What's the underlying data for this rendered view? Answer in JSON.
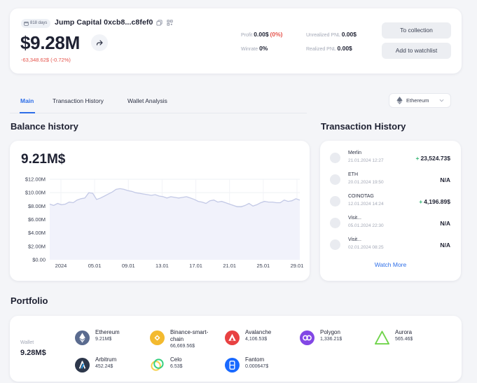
{
  "header": {
    "badge": "818 days",
    "wallet_name": "Jump Capital 0xcb8...c8fef0",
    "total_value": "$9.28M",
    "change": "-63,348.62$ (-0.72%)",
    "profit_label": "Profit",
    "profit_value": "0.00$",
    "profit_pct": "(0%)",
    "winrate_label": "Winrate",
    "winrate_value": "0%",
    "unrealized_label": "Unrealized PNL",
    "unrealized_value": "0.00$",
    "realized_label": "Realized PNL",
    "realized_value": "0.00$",
    "to_collection": "To collection",
    "add_watchlist": "Add to watchlist"
  },
  "tabs": [
    {
      "label": "Main",
      "active": true
    },
    {
      "label": "Transaction History",
      "active": false
    },
    {
      "label": "Wallet Analysis",
      "active": false
    }
  ],
  "network": {
    "selected": "Ethereum"
  },
  "balance": {
    "title": "Balance history",
    "current": "9.21M$"
  },
  "chart_data": {
    "type": "area",
    "title": "",
    "xlabel": "",
    "ylabel": "",
    "ylim": [
      0,
      12
    ],
    "y_unit": "M$",
    "y_ticks": [
      "$12.00M",
      "$10.00M",
      "$8.00M",
      "$6.00M",
      "$4.00M",
      "$2.00M",
      "$0.00"
    ],
    "x_ticks": [
      "2024",
      "05.01",
      "09.01",
      "13.01",
      "17.01",
      "21.01",
      "25.01",
      "29.01"
    ],
    "x": [
      0,
      1,
      2,
      3,
      4,
      5,
      6,
      7,
      8,
      9,
      10,
      11,
      12,
      13,
      14,
      15,
      16,
      17,
      18,
      19,
      20,
      21,
      22,
      23,
      24,
      25,
      26,
      27,
      28,
      29,
      30,
      31,
      32,
      33,
      34,
      35,
      36,
      37,
      38,
      39,
      40,
      41,
      42,
      43,
      44,
      45,
      46,
      47,
      48,
      49,
      50,
      51,
      52,
      53,
      54,
      55,
      56,
      57,
      58,
      59,
      60,
      61,
      62,
      63,
      64
    ],
    "values": [
      8.3,
      8.1,
      8.4,
      8.2,
      8.3,
      8.6,
      8.5,
      8.9,
      9.1,
      9.2,
      10.0,
      9.9,
      9.0,
      9.2,
      9.5,
      9.8,
      10.1,
      10.5,
      10.6,
      10.5,
      10.3,
      10.2,
      10.0,
      9.9,
      9.8,
      9.7,
      9.6,
      9.7,
      9.5,
      9.4,
      9.2,
      9.4,
      9.3,
      9.2,
      9.3,
      9.4,
      9.2,
      9.0,
      8.7,
      8.6,
      8.4,
      8.8,
      8.9,
      8.6,
      8.7,
      8.5,
      8.3,
      8.1,
      7.9,
      7.9,
      8.1,
      8.4,
      8.0,
      8.2,
      8.5,
      8.7,
      8.6,
      8.6,
      8.5,
      8.5,
      8.9,
      8.7,
      8.8,
      9.1,
      8.9
    ],
    "grid": true,
    "line_color": "#c3c9e6",
    "fill_color": "#f1f2fb"
  },
  "transactions": {
    "title": "Transaction History",
    "items": [
      {
        "name": "Merlin",
        "date": "21.01.2024 12:27",
        "value": "23,524.73$",
        "plus": "+"
      },
      {
        "name": "ETH",
        "date": "20.01.2024 19:50",
        "value": "N/A",
        "plus": ""
      },
      {
        "name": "COINOTAG",
        "date": "12.01.2024 14:24",
        "value": "4,196.89$",
        "plus": "+"
      },
      {
        "name": "Visit...",
        "date": "05.01.2024 22:30",
        "value": "N/A",
        "plus": ""
      },
      {
        "name": "Visit...",
        "date": "02.01.2024 08:25",
        "value": "N/A",
        "plus": ""
      }
    ],
    "watch_more": "Watch More"
  },
  "portfolio": {
    "title": "Portfolio",
    "wallet_label": "Wallet",
    "wallet_total": "9.28M$",
    "assets": [
      {
        "name": "Ethereum",
        "value": "9.21M$",
        "icon": "ethereum-icon",
        "color": "#5a6b8f"
      },
      {
        "name": "Binance-smart-chain",
        "value": "66,669.56$",
        "icon": "binance-icon",
        "color": "#f3ba2f"
      },
      {
        "name": "Avalanche",
        "value": "4,106.53$",
        "icon": "avalanche-icon",
        "color": "#e84142"
      },
      {
        "name": "Polygon",
        "value": "1,336.21$",
        "icon": "polygon-icon",
        "color": "#8247e5"
      },
      {
        "name": "Aurora",
        "value": "565.46$",
        "icon": "aurora-icon",
        "color": "#70d44b"
      },
      {
        "name": "Arbitrum",
        "value": "452.24$",
        "icon": "arbitrum-icon",
        "color": "#2d374b"
      },
      {
        "name": "Celo",
        "value": "6.53$",
        "icon": "celo-icon",
        "color": "#35d07f"
      },
      {
        "name": "Fantom",
        "value": "0.000647$",
        "icon": "fantom-icon",
        "color": "#1969ff"
      }
    ]
  },
  "colors": {
    "accent": "#2d6ee8",
    "negative": "#e5534b",
    "positive": "#2fb36f",
    "background": "#f4f5f8"
  }
}
